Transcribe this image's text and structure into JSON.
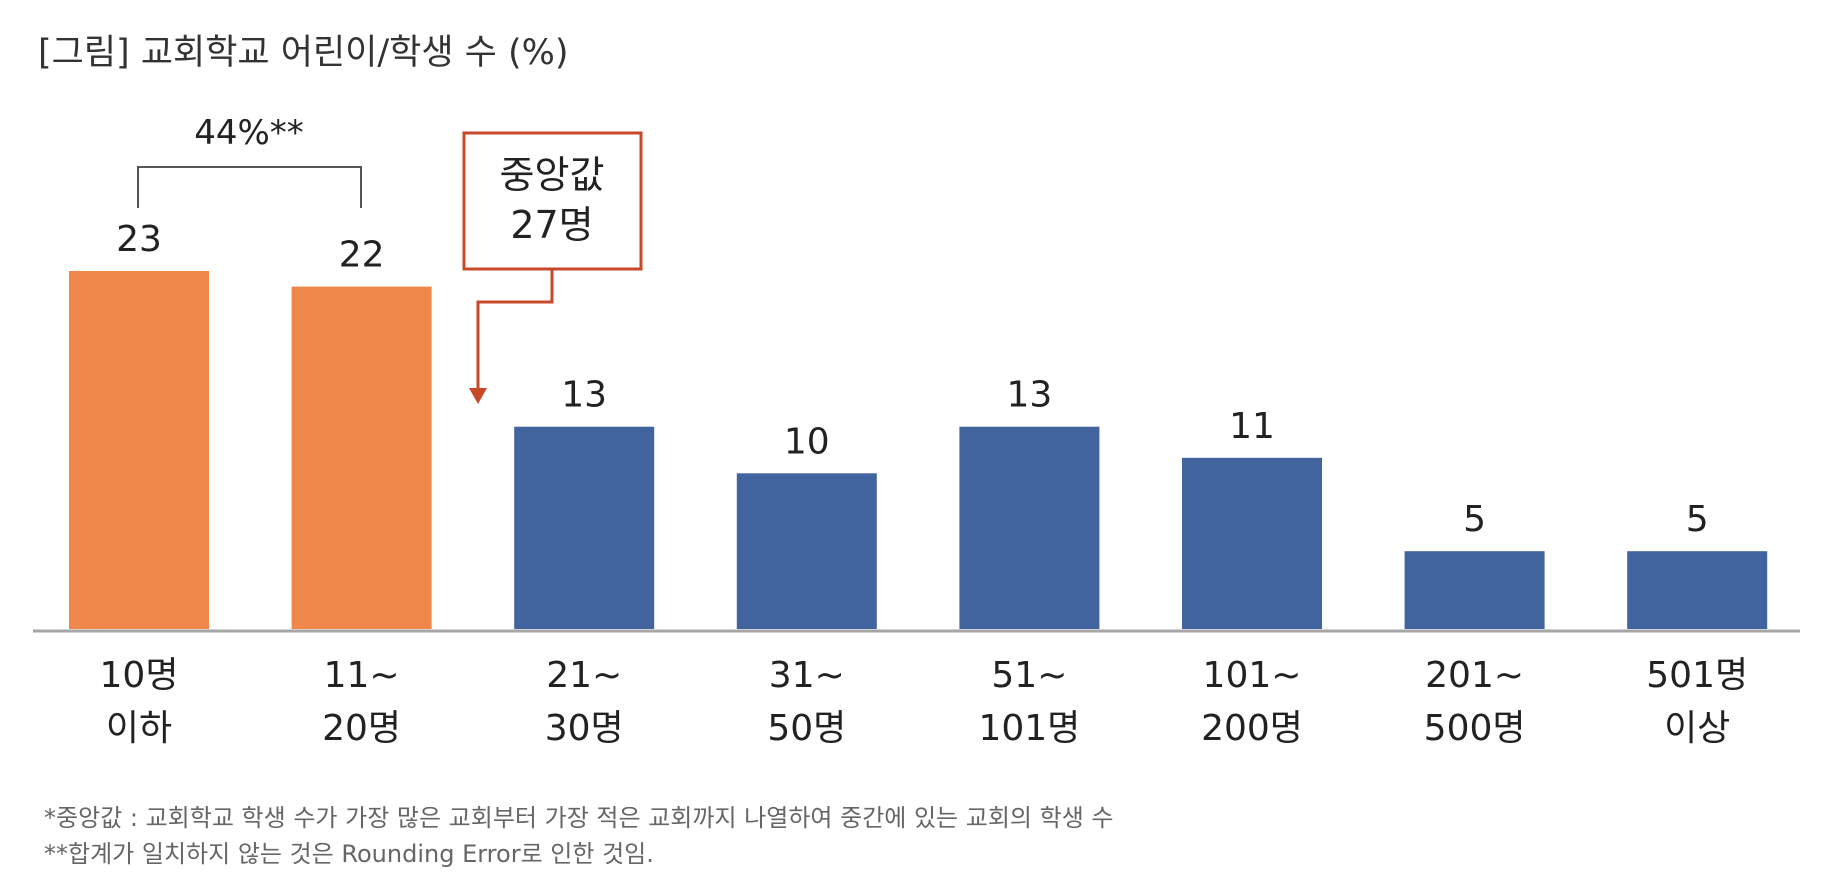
{
  "title": "[그림] 교회학교 어린이/학생 수 (%)",
  "chart_data": {
    "type": "bar",
    "title": "[그림] 교회학교 어린이/학생 수 (%)",
    "categories": [
      [
        "10명",
        "이하"
      ],
      [
        "11~",
        "20명"
      ],
      [
        "21~",
        "30명"
      ],
      [
        "31~",
        "50명"
      ],
      [
        "51~",
        "101명"
      ],
      [
        "101~",
        "200명"
      ],
      [
        "201~",
        "500명"
      ],
      [
        "501명",
        "이상"
      ]
    ],
    "values": [
      23,
      22,
      13,
      10,
      13,
      11,
      5,
      5
    ],
    "value_labels": [
      "23",
      "22",
      "13",
      "10",
      "13",
      "11",
      "5",
      "5"
    ],
    "highlighted_categories": [
      0,
      1
    ],
    "colors": {
      "highlight": "#F0874A",
      "default": "#41639E",
      "annotation": "#C8492A",
      "axis": "#A6A6A6",
      "bracket": "#555555"
    },
    "ylim": [
      0,
      23
    ],
    "grid": false,
    "legend": "none",
    "annotations": {
      "bracket_label": "44%**",
      "median_box": [
        "중앙값",
        "27명"
      ]
    }
  },
  "footnotes": [
    "*중앙값 : 교회학교 학생 수가 가장 많은 교회부터 가장 적은 교회까지 나열하여 중간에 있는 교회의 학생 수",
    "**합계가 일치하지 않는 것은 Rounding Error로 인한 것임."
  ]
}
